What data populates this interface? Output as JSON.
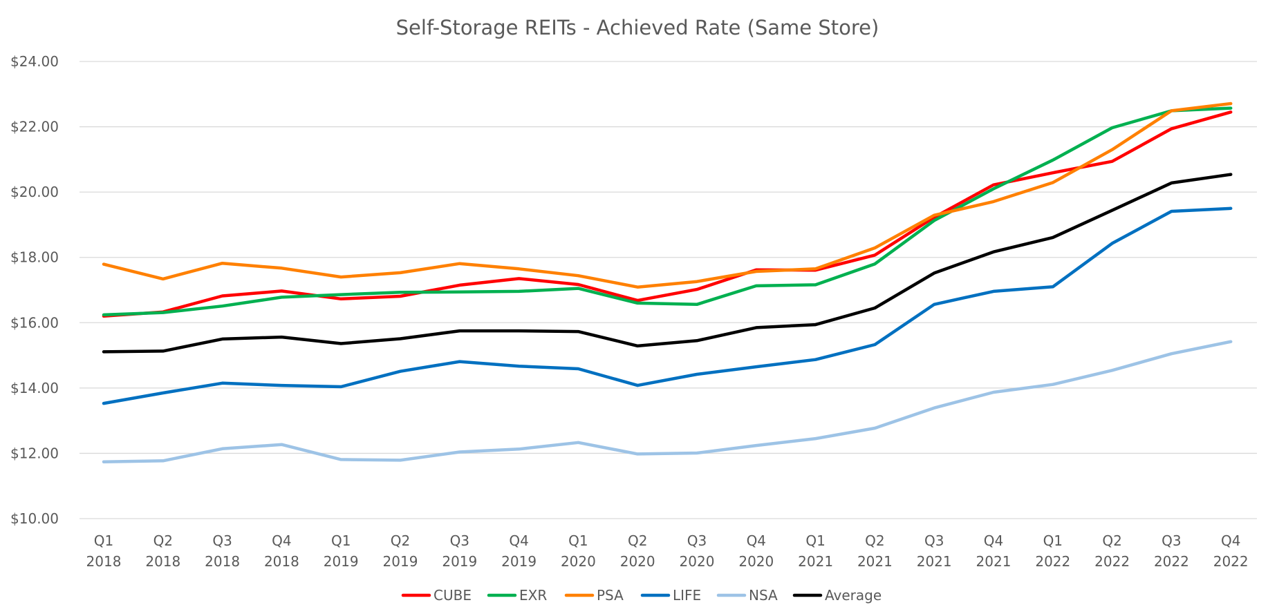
{
  "chart_data": {
    "type": "line",
    "title": "Self-Storage REITs - Achieved Rate (Same Store)",
    "xlabel": "",
    "ylabel": "",
    "ylim": [
      10,
      24
    ],
    "yticks": [
      10,
      12,
      14,
      16,
      18,
      20,
      22,
      24
    ],
    "ytick_labels": [
      "$10.00",
      "$12.00",
      "$14.00",
      "$16.00",
      "$18.00",
      "$20.00",
      "$22.00",
      "$24.00"
    ],
    "grid": "horizontal",
    "legend_position": "bottom",
    "categories": [
      [
        "Q1",
        "2018"
      ],
      [
        "Q2",
        "2018"
      ],
      [
        "Q3",
        "2018"
      ],
      [
        "Q4",
        "2018"
      ],
      [
        "Q1",
        "2019"
      ],
      [
        "Q2",
        "2019"
      ],
      [
        "Q3",
        "2019"
      ],
      [
        "Q4",
        "2019"
      ],
      [
        "Q1",
        "2020"
      ],
      [
        "Q2",
        "2020"
      ],
      [
        "Q3",
        "2020"
      ],
      [
        "Q4",
        "2020"
      ],
      [
        "Q1",
        "2021"
      ],
      [
        "Q2",
        "2021"
      ],
      [
        "Q3",
        "2021"
      ],
      [
        "Q4",
        "2021"
      ],
      [
        "Q1",
        "2022"
      ],
      [
        "Q2",
        "2022"
      ],
      [
        "Q3",
        "2022"
      ],
      [
        "Q4",
        "2022"
      ]
    ],
    "series": [
      {
        "name": "CUBE",
        "color": "#ff0000",
        "values": [
          16.2,
          16.33,
          16.82,
          16.97,
          16.73,
          16.81,
          17.15,
          17.35,
          17.17,
          16.68,
          17.02,
          17.62,
          17.61,
          18.07,
          19.23,
          20.22,
          20.59,
          20.94,
          21.94,
          22.45
        ]
      },
      {
        "name": "EXR",
        "color": "#00b050",
        "values": [
          16.24,
          16.31,
          16.51,
          16.78,
          16.86,
          16.93,
          16.94,
          16.96,
          17.05,
          16.6,
          16.56,
          17.13,
          17.16,
          17.8,
          19.13,
          20.1,
          20.98,
          21.97,
          22.49,
          22.57
        ]
      },
      {
        "name": "PSA",
        "color": "#ff8000",
        "values": [
          17.79,
          17.34,
          17.82,
          17.67,
          17.4,
          17.53,
          17.81,
          17.65,
          17.44,
          17.09,
          17.26,
          17.57,
          17.65,
          18.29,
          19.29,
          19.71,
          20.29,
          21.3,
          22.49,
          22.71
        ]
      },
      {
        "name": "LIFE",
        "color": "#0070c0",
        "values": [
          13.53,
          13.85,
          14.15,
          14.08,
          14.04,
          14.51,
          14.81,
          14.67,
          14.59,
          14.08,
          14.42,
          14.65,
          14.87,
          15.33,
          16.56,
          16.96,
          17.1,
          18.43,
          19.41,
          19.5
        ]
      },
      {
        "name": "NSA",
        "color": "#9dc3e6",
        "values": [
          11.74,
          11.77,
          12.14,
          12.27,
          11.81,
          11.79,
          12.04,
          12.13,
          12.33,
          11.98,
          12.01,
          12.24,
          12.45,
          12.77,
          13.39,
          13.87,
          14.11,
          14.54,
          15.05,
          15.42
        ]
      },
      {
        "name": "Average",
        "color": "#000000",
        "values": [
          15.11,
          15.13,
          15.5,
          15.56,
          15.36,
          15.51,
          15.75,
          15.75,
          15.73,
          15.29,
          15.45,
          15.85,
          15.94,
          16.45,
          17.52,
          18.17,
          18.61,
          19.44,
          20.28,
          20.54
        ]
      }
    ]
  }
}
